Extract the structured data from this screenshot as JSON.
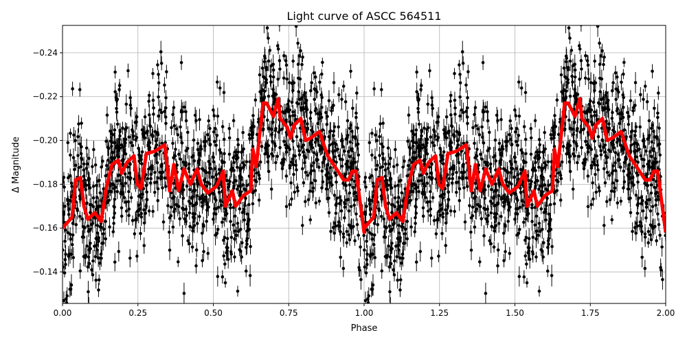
{
  "chart_data": {
    "type": "scatter",
    "title": "Light curve of ASCC 564511",
    "xlabel": "Phase",
    "ylabel": "Δ Magnitude",
    "xlim": [
      0.0,
      2.0
    ],
    "ylim": [
      -0.2525,
      -0.1256
    ],
    "y_inverted": true,
    "grid": true,
    "x_ticks": [
      "0.00",
      "0.25",
      "0.50",
      "0.75",
      "1.00",
      "1.25",
      "1.50",
      "1.75",
      "2.00"
    ],
    "y_ticks": [
      "−0.24",
      "−0.22",
      "−0.20",
      "−0.18",
      "−0.16",
      "−0.14"
    ],
    "series": [
      {
        "type": "scatter-errorbar",
        "color": "#000000",
        "phase_repeats": true
      },
      {
        "type": "line",
        "color": "#ff0000",
        "x": [
          0.0,
          0.032,
          0.043,
          0.059,
          0.071,
          0.084,
          0.107,
          0.128,
          0.146,
          0.164,
          0.185,
          0.196,
          0.214,
          0.237,
          0.248,
          0.26,
          0.278,
          0.305,
          0.339,
          0.355,
          0.369,
          0.385,
          0.403,
          0.424,
          0.446,
          0.46,
          0.481,
          0.51,
          0.533,
          0.54,
          0.563,
          0.574,
          0.601,
          0.624,
          0.631,
          0.642,
          0.665,
          0.677,
          0.699,
          0.715,
          0.722,
          0.745,
          0.756,
          0.768,
          0.79,
          0.806,
          0.822,
          0.852,
          0.879,
          0.913,
          0.932,
          0.948,
          0.961,
          0.973,
          1.0
        ],
        "y": [
          -0.16,
          -0.165,
          -0.182,
          -0.183,
          -0.17,
          -0.164,
          -0.167,
          -0.163,
          -0.179,
          -0.189,
          -0.191,
          -0.185,
          -0.19,
          -0.193,
          -0.18,
          -0.178,
          -0.194,
          -0.195,
          -0.198,
          -0.177,
          -0.189,
          -0.177,
          -0.187,
          -0.18,
          -0.187,
          -0.18,
          -0.176,
          -0.179,
          -0.186,
          -0.17,
          -0.177,
          -0.17,
          -0.175,
          -0.177,
          -0.196,
          -0.188,
          -0.217,
          -0.217,
          -0.211,
          -0.219,
          -0.21,
          -0.206,
          -0.201,
          -0.207,
          -0.21,
          -0.2,
          -0.201,
          -0.204,
          -0.193,
          -0.186,
          -0.182,
          -0.182,
          -0.186,
          -0.186,
          -0.158
        ]
      }
    ]
  }
}
